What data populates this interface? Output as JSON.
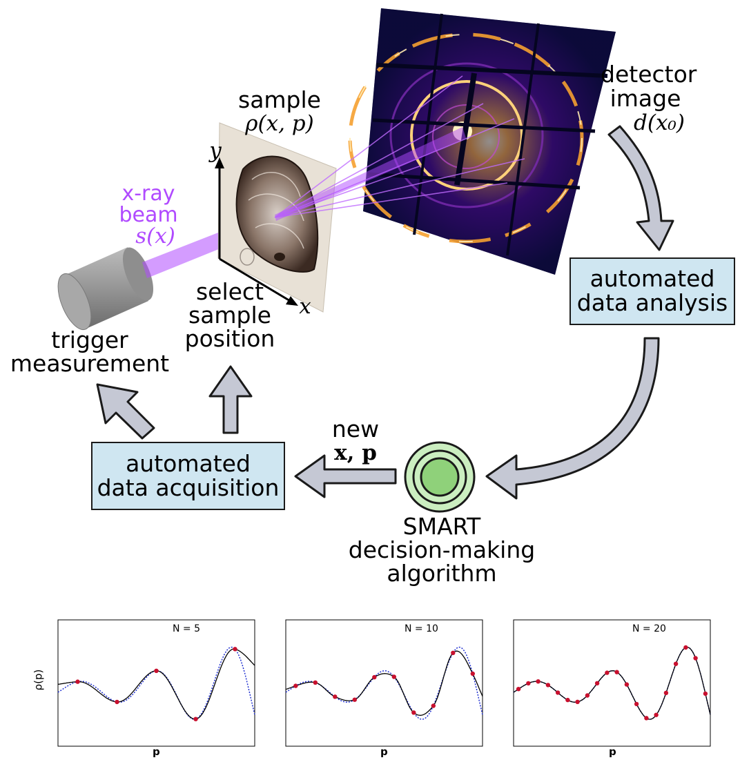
{
  "labels": {
    "sample": "sample",
    "sample_math": "ρ(x, p)",
    "axis_y": "y",
    "axis_x": "x",
    "beam_line1": "x-ray",
    "beam_line2": "beam",
    "beam_math": "s(x)",
    "detector_line1": "detector",
    "detector_line2": "image",
    "detector_math": "d(x₀)",
    "select_line1": "select",
    "select_line2": "sample",
    "select_line3": "position",
    "trigger_line1": "trigger",
    "trigger_line2": "measurement",
    "new_line1": "new",
    "new_math": "x, p",
    "smart_line1": "SMART",
    "smart_line2": "decision-making",
    "smart_line3": "algorithm"
  },
  "boxes": {
    "analysis_line1": "automated",
    "analysis_line2": "data analysis",
    "acquisition_line1": "automated",
    "acquisition_line2": "data acquisition"
  },
  "colors": {
    "box_fill": "#cfe6f1",
    "arrow_fill": "#c5c8d4",
    "beam": "#b04aff",
    "smart_green": "#8fd17a",
    "true_curve": "#1f2fd0",
    "fit_curve": "#000000",
    "sample_point": "#c8102e"
  },
  "chart_data": [
    {
      "type": "line",
      "title": "N = 5",
      "xlabel": "p",
      "ylabel": "ρ(p)",
      "samples": 5
    },
    {
      "type": "line",
      "title": "N = 10",
      "xlabel": "p",
      "ylabel": "",
      "samples": 10
    },
    {
      "type": "line",
      "title": "N = 20",
      "xlabel": "p",
      "ylabel": "",
      "samples": 20
    }
  ]
}
